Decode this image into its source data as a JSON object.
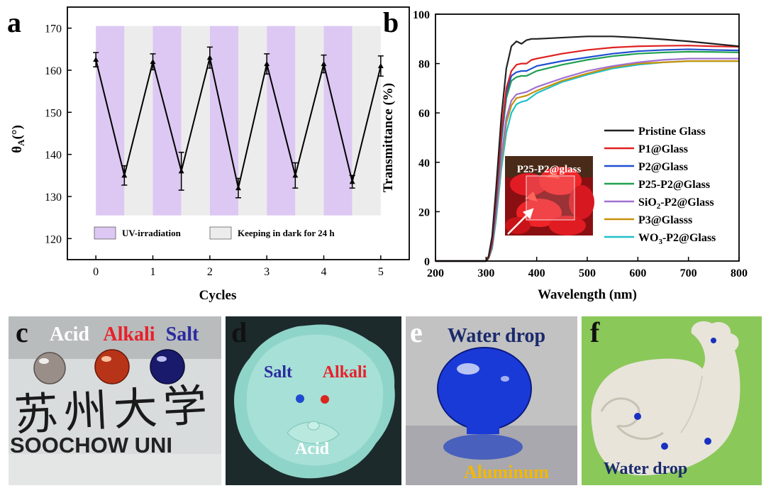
{
  "panels": {
    "a": {
      "label": "a"
    },
    "b": {
      "label": "b"
    },
    "c": {
      "label": "c",
      "drop_labels": [
        "Acid",
        "Alkali",
        "Salt"
      ],
      "logo_text": "SOOCHOW UNI",
      "calligraphy": "苏州大学"
    },
    "d": {
      "label": "d",
      "labels": {
        "salt": "Salt",
        "alkali": "Alkali",
        "acid": "Acid"
      }
    },
    "e": {
      "label": "e",
      "labels": {
        "top": "Water drop",
        "bottom": "Aluminum"
      }
    },
    "f": {
      "label": "f",
      "labels": {
        "bottom": "Water drop"
      }
    }
  },
  "colors": {
    "uv_band": "#dcc8f2",
    "dark_band": "#ececec",
    "label_acid_white": "#ffffff",
    "label_alkali": "#e8202a",
    "label_salt": "#2a2aa0",
    "label_navy": "#1a2a6c",
    "label_aluminum": "#f2b800"
  },
  "chart_data": [
    {
      "type": "line",
      "title": "",
      "xlabel": "Cycles",
      "ylabel": "θA(°)",
      "xlim": [
        -0.5,
        5.5
      ],
      "ylim": [
        115,
        175
      ],
      "xticks": [
        0,
        1,
        2,
        3,
        4,
        5
      ],
      "yticks": [
        120,
        130,
        140,
        150,
        160,
        170
      ],
      "series": [
        {
          "x": [
            0,
            0.5,
            1,
            1.5,
            2,
            2.5,
            3,
            3.5,
            4,
            4.5,
            5
          ],
          "y": [
            162.5,
            135,
            162,
            136,
            163,
            132,
            161.5,
            135,
            161.5,
            133.5,
            161
          ],
          "error": [
            1.7,
            2.3,
            1.9,
            4.5,
            2.5,
            2.3,
            2.4,
            3.0,
            2.1,
            1.5,
            2.4
          ]
        }
      ],
      "bands": {
        "uv": [
          [
            0,
            0.5
          ],
          [
            1,
            1.5
          ],
          [
            2,
            2.5
          ],
          [
            3,
            3.5
          ],
          [
            4,
            4.5
          ]
        ],
        "dark": [
          [
            0.5,
            1
          ],
          [
            1.5,
            2
          ],
          [
            2.5,
            3
          ],
          [
            3.5,
            4
          ],
          [
            4.5,
            5
          ]
        ],
        "y_range": [
          125.5,
          170.5
        ]
      },
      "legend": {
        "entries": [
          "UV-irradiation",
          "Keeping in dark for 24 h"
        ],
        "placement": "bottom"
      }
    },
    {
      "type": "line",
      "title": "",
      "xlabel": "Wavelength (nm)",
      "ylabel": "Transmittance (%)",
      "xlim": [
        200,
        800
      ],
      "ylim": [
        0,
        100
      ],
      "xticks": [
        200,
        300,
        400,
        500,
        600,
        700,
        800
      ],
      "yticks": [
        0,
        20,
        40,
        60,
        80,
        100
      ],
      "legend_placement": "bottom-right",
      "inset_label": "P25-P2@glass",
      "series": [
        {
          "name": "Pristine Glass",
          "color": "#222222",
          "x": [
            200,
            300,
            305,
            312,
            320,
            330,
            340,
            350,
            360,
            370,
            380,
            390,
            400,
            450,
            500,
            550,
            600,
            650,
            700,
            750,
            800
          ],
          "y": [
            0,
            0,
            2,
            10,
            30,
            58,
            78,
            87,
            89,
            88,
            89.5,
            90,
            90,
            90.5,
            91,
            91,
            90.5,
            89.8,
            89,
            88,
            87
          ]
        },
        {
          "name": "P1@Glass",
          "color": "#e02020",
          "x": [
            200,
            300,
            305,
            312,
            320,
            330,
            340,
            350,
            360,
            370,
            380,
            390,
            400,
            450,
            500,
            550,
            600,
            650,
            700,
            750,
            800
          ],
          "y": [
            0,
            0,
            1.5,
            8,
            26,
            52,
            70,
            77,
            79.5,
            80,
            80,
            81.5,
            82,
            84,
            85.5,
            86.5,
            87,
            87.2,
            87.3,
            87,
            86.8
          ]
        },
        {
          "name": "P2@Glass",
          "color": "#2050d0",
          "x": [
            200,
            300,
            305,
            312,
            320,
            330,
            340,
            350,
            360,
            370,
            380,
            390,
            400,
            450,
            500,
            550,
            600,
            650,
            700,
            750,
            800
          ],
          "y": [
            0,
            0,
            1.5,
            7,
            24,
            50,
            68,
            75,
            76.5,
            77,
            77,
            78,
            79,
            81,
            82.5,
            84,
            85,
            85.5,
            85.8,
            85.5,
            85.3
          ]
        },
        {
          "name": "P25-P2@Glass",
          "color": "#20a050",
          "x": [
            200,
            300,
            305,
            312,
            320,
            330,
            340,
            350,
            360,
            370,
            380,
            390,
            400,
            450,
            500,
            550,
            600,
            650,
            700,
            750,
            800
          ],
          "y": [
            0,
            0,
            1.5,
            7,
            23,
            48,
            66,
            73,
            74.5,
            75,
            75,
            76,
            77,
            79.5,
            81.5,
            83,
            84,
            84.5,
            84.8,
            84.7,
            84.5
          ]
        },
        {
          "name": "SiO2-P2@Glass",
          "color": "#a070d0",
          "x": [
            200,
            300,
            305,
            312,
            320,
            330,
            340,
            350,
            360,
            370,
            380,
            390,
            400,
            450,
            500,
            550,
            600,
            650,
            700,
            750,
            800
          ],
          "y": [
            0,
            0,
            1.2,
            6,
            20,
            42,
            58,
            65,
            67.5,
            68,
            68.5,
            69.5,
            70.5,
            74,
            77,
            79,
            80.5,
            81.5,
            82,
            82,
            82
          ]
        },
        {
          "name": "P3@Glasss",
          "color": "#c8920a",
          "x": [
            200,
            300,
            305,
            312,
            320,
            330,
            340,
            350,
            360,
            370,
            380,
            390,
            400,
            450,
            500,
            550,
            600,
            650,
            700,
            750,
            800
          ],
          "y": [
            0,
            0,
            1,
            5.5,
            19,
            40,
            56,
            63,
            66,
            66.5,
            67,
            68,
            69,
            73,
            76,
            78.5,
            80,
            80.5,
            81,
            81,
            81
          ]
        },
        {
          "name": "WO3-P2@Glass",
          "color": "#20c0c8",
          "x": [
            200,
            300,
            305,
            312,
            320,
            330,
            340,
            350,
            360,
            370,
            380,
            390,
            400,
            450,
            500,
            550,
            600,
            650,
            700,
            750,
            800
          ],
          "y": [
            0,
            0,
            1,
            5,
            17,
            37,
            52,
            60,
            63.5,
            64.5,
            65,
            66.5,
            68,
            72.5,
            75.5,
            78,
            79.5,
            80.5,
            81,
            81,
            81
          ]
        }
      ]
    }
  ]
}
